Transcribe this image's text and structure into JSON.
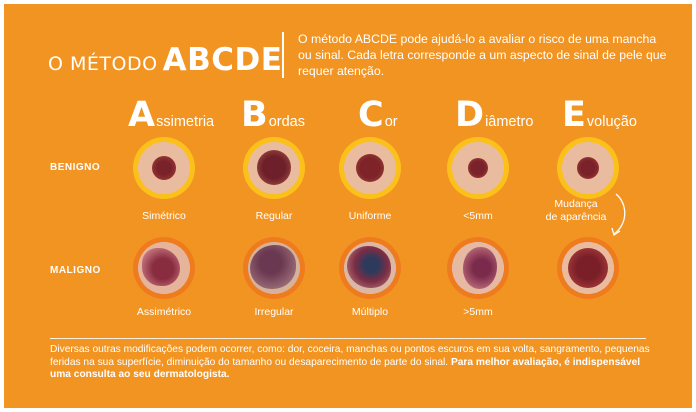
{
  "title": {
    "prefix": "O MÉTODO",
    "main": "ABCDE"
  },
  "intro": "O método ABCDE pode ajudá-lo a avaliar o risco de uma mancha ou sinal. Cada letra corresponde a um aspecto de sinal de pele que requer atenção.",
  "columns": [
    {
      "letter": "A",
      "rest": "ssimetria",
      "benign": "Simétrico",
      "malignant": "Assimétrico"
    },
    {
      "letter": "B",
      "rest": "ordas",
      "benign": "Regular",
      "malignant": "Irregular"
    },
    {
      "letter": "C",
      "rest": "or",
      "benign": "Uniforme",
      "malignant": "Múltiplo"
    },
    {
      "letter": "D",
      "rest": "iâmetro",
      "benign": "<5mm",
      "malignant": ">5mm"
    },
    {
      "letter": "E",
      "rest": "volução",
      "benign": "Mudança\nde aparência",
      "malignant": ""
    }
  ],
  "rows": {
    "benign": "BENIGNO",
    "malignant": "MALIGNO"
  },
  "footer": {
    "text": "Diversas outras modificações podem ocorrer, como: dor, coceira, manchas ou pontos escuros em sua volta, sangramento, pequenas feridas na sua superfície, diminuição do tamanho ou desaparecimento de parte do sinal.",
    "bold": "Para melhor avaliação, é indispensável uma consulta ao seu dermatologista."
  },
  "colors": {
    "background": "#f29422",
    "ring_benign": "#fbc11a",
    "ring_malignant": "#ef7b1f",
    "skin": "#e9bca0",
    "mole": "#8e2a2e"
  }
}
